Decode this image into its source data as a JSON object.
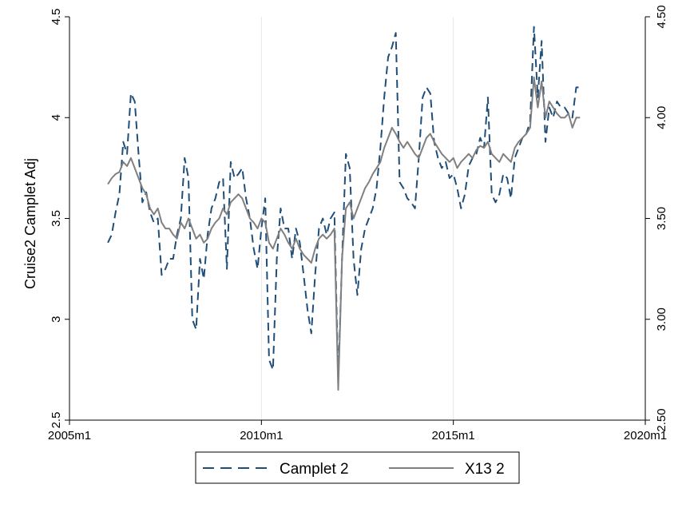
{
  "chart_data": {
    "type": "line",
    "ylabel": "Cruise2 Camplet Adj",
    "xlim": [
      2005.0,
      2020.0
    ],
    "ylim": [
      2.5,
      4.5
    ],
    "y2lim": [
      2.5,
      4.5
    ],
    "x_ticks": [
      {
        "value": 2005.0,
        "label": "2005m1"
      },
      {
        "value": 2010.0,
        "label": "2010m1"
      },
      {
        "value": 2015.0,
        "label": "2015m1"
      },
      {
        "value": 2020.0,
        "label": "2020m1"
      }
    ],
    "y_ticks": [
      {
        "value": 2.5,
        "label": "2.5"
      },
      {
        "value": 3.0,
        "label": "3"
      },
      {
        "value": 3.5,
        "label": "3.5"
      },
      {
        "value": 4.0,
        "label": "4"
      },
      {
        "value": 4.5,
        "label": "4.5"
      }
    ],
    "y2_ticks": [
      {
        "value": 2.5,
        "label": "2.50"
      },
      {
        "value": 3.0,
        "label": "3.00"
      },
      {
        "value": 3.5,
        "label": "3.50"
      },
      {
        "value": 4.0,
        "label": "4.00"
      },
      {
        "value": 4.5,
        "label": "4.50"
      }
    ],
    "grid": "vertical",
    "legend_position": "bottom",
    "series": [
      {
        "name": "Camplet 2",
        "style": "dashed",
        "color": "#1f4e79",
        "x": [
          2006.0,
          2006.1,
          2006.2,
          2006.3,
          2006.4,
          2006.5,
          2006.6,
          2006.7,
          2006.8,
          2006.9,
          2007.0,
          2007.1,
          2007.2,
          2007.3,
          2007.4,
          2007.5,
          2007.6,
          2007.7,
          2007.8,
          2007.9,
          2008.0,
          2008.1,
          2008.2,
          2008.3,
          2008.4,
          2008.5,
          2008.6,
          2008.7,
          2008.8,
          2008.9,
          2009.0,
          2009.1,
          2009.2,
          2009.3,
          2009.4,
          2009.5,
          2009.6,
          2009.7,
          2009.8,
          2009.9,
          2010.0,
          2010.1,
          2010.2,
          2010.3,
          2010.4,
          2010.5,
          2010.6,
          2010.7,
          2010.8,
          2010.9,
          2011.0,
          2011.1,
          2011.2,
          2011.3,
          2011.4,
          2011.5,
          2011.6,
          2011.7,
          2011.8,
          2011.9,
          2012.0,
          2012.1,
          2012.2,
          2012.3,
          2012.4,
          2012.5,
          2012.6,
          2012.7,
          2012.8,
          2012.9,
          2013.0,
          2013.1,
          2013.2,
          2013.3,
          2013.4,
          2013.5,
          2013.6,
          2013.7,
          2013.8,
          2013.9,
          2014.0,
          2014.1,
          2014.2,
          2014.3,
          2014.4,
          2014.5,
          2014.6,
          2014.7,
          2014.8,
          2014.9,
          2015.0,
          2015.1,
          2015.2,
          2015.3,
          2015.4,
          2015.5,
          2015.6,
          2015.7,
          2015.8,
          2015.9,
          2016.0,
          2016.1,
          2016.2,
          2016.3,
          2016.4,
          2016.5,
          2016.6,
          2016.7,
          2016.8,
          2016.9,
          2017.0,
          2017.1,
          2017.2,
          2017.3,
          2017.4,
          2017.5,
          2017.6,
          2017.7,
          2017.8,
          2017.9,
          2018.0,
          2018.1,
          2018.2,
          2018.3
        ],
        "y": [
          3.38,
          3.42,
          3.53,
          3.62,
          3.88,
          3.82,
          4.12,
          4.08,
          3.82,
          3.58,
          3.63,
          3.53,
          3.48,
          3.5,
          3.22,
          3.25,
          3.3,
          3.3,
          3.42,
          3.5,
          3.8,
          3.7,
          3.0,
          2.95,
          3.3,
          3.2,
          3.42,
          3.55,
          3.6,
          3.68,
          3.7,
          3.25,
          3.78,
          3.7,
          3.72,
          3.75,
          3.6,
          3.5,
          3.35,
          3.25,
          3.45,
          3.6,
          2.8,
          2.75,
          3.3,
          3.55,
          3.45,
          3.45,
          3.3,
          3.45,
          3.38,
          3.22,
          3.05,
          2.93,
          3.22,
          3.45,
          3.5,
          3.42,
          3.5,
          3.53,
          2.7,
          3.3,
          3.82,
          3.75,
          3.3,
          3.12,
          3.35,
          3.45,
          3.5,
          3.55,
          3.65,
          3.85,
          4.1,
          4.3,
          4.35,
          4.42,
          3.68,
          3.65,
          3.6,
          3.58,
          3.55,
          3.8,
          4.1,
          4.15,
          4.12,
          3.88,
          3.8,
          3.75,
          3.78,
          3.7,
          3.72,
          3.65,
          3.55,
          3.62,
          3.76,
          3.8,
          3.82,
          3.9,
          3.85,
          4.1,
          3.62,
          3.58,
          3.62,
          3.72,
          3.7,
          3.6,
          3.8,
          3.85,
          3.9,
          3.92,
          3.98,
          4.45,
          4.1,
          4.38,
          3.88,
          4.05,
          4.0,
          4.08,
          4.05,
          4.05,
          4.02,
          4.0,
          4.15,
          4.15
        ]
      },
      {
        "name": "X13 2",
        "style": "solid",
        "color": "#808080",
        "x": [
          2006.0,
          2006.1,
          2006.2,
          2006.3,
          2006.4,
          2006.5,
          2006.6,
          2006.7,
          2006.8,
          2006.9,
          2007.0,
          2007.1,
          2007.2,
          2007.3,
          2007.4,
          2007.5,
          2007.6,
          2007.7,
          2007.8,
          2007.9,
          2008.0,
          2008.1,
          2008.2,
          2008.3,
          2008.4,
          2008.5,
          2008.6,
          2008.7,
          2008.8,
          2008.9,
          2009.0,
          2009.1,
          2009.2,
          2009.3,
          2009.4,
          2009.5,
          2009.6,
          2009.7,
          2009.8,
          2009.9,
          2010.0,
          2010.1,
          2010.2,
          2010.3,
          2010.4,
          2010.5,
          2010.6,
          2010.7,
          2010.8,
          2010.9,
          2011.0,
          2011.1,
          2011.2,
          2011.3,
          2011.4,
          2011.5,
          2011.6,
          2011.7,
          2011.8,
          2011.9,
          2012.0,
          2012.1,
          2012.2,
          2012.3,
          2012.4,
          2012.5,
          2012.6,
          2012.7,
          2012.8,
          2012.9,
          2013.0,
          2013.1,
          2013.2,
          2013.3,
          2013.4,
          2013.5,
          2013.6,
          2013.7,
          2013.8,
          2013.9,
          2014.0,
          2014.1,
          2014.2,
          2014.3,
          2014.4,
          2014.5,
          2014.6,
          2014.7,
          2014.8,
          2014.9,
          2015.0,
          2015.1,
          2015.2,
          2015.3,
          2015.4,
          2015.5,
          2015.6,
          2015.7,
          2015.8,
          2015.9,
          2016.0,
          2016.1,
          2016.2,
          2016.3,
          2016.4,
          2016.5,
          2016.6,
          2016.7,
          2016.8,
          2016.9,
          2017.0,
          2017.1,
          2017.2,
          2017.3,
          2017.4,
          2017.5,
          2017.6,
          2017.7,
          2017.8,
          2017.9,
          2018.0,
          2018.1,
          2018.2,
          2018.3
        ],
        "y": [
          3.67,
          3.7,
          3.72,
          3.73,
          3.78,
          3.76,
          3.8,
          3.75,
          3.7,
          3.65,
          3.62,
          3.55,
          3.52,
          3.55,
          3.48,
          3.45,
          3.45,
          3.42,
          3.4,
          3.48,
          3.45,
          3.5,
          3.45,
          3.4,
          3.42,
          3.38,
          3.4,
          3.45,
          3.48,
          3.5,
          3.55,
          3.52,
          3.58,
          3.6,
          3.62,
          3.6,
          3.55,
          3.5,
          3.48,
          3.45,
          3.5,
          3.48,
          3.38,
          3.35,
          3.4,
          3.45,
          3.42,
          3.38,
          3.35,
          3.4,
          3.35,
          3.32,
          3.3,
          3.28,
          3.35,
          3.4,
          3.42,
          3.4,
          3.42,
          3.45,
          2.65,
          3.3,
          3.55,
          3.58,
          3.5,
          3.55,
          3.6,
          3.65,
          3.68,
          3.72,
          3.75,
          3.78,
          3.85,
          3.9,
          3.95,
          3.92,
          3.88,
          3.85,
          3.88,
          3.85,
          3.82,
          3.8,
          3.85,
          3.9,
          3.92,
          3.88,
          3.85,
          3.82,
          3.8,
          3.78,
          3.8,
          3.75,
          3.78,
          3.8,
          3.82,
          3.8,
          3.84,
          3.86,
          3.85,
          3.88,
          3.82,
          3.8,
          3.78,
          3.82,
          3.8,
          3.78,
          3.85,
          3.88,
          3.9,
          3.92,
          3.95,
          4.2,
          4.05,
          4.18,
          4.0,
          4.08,
          4.05,
          4.02,
          4.0,
          4.0,
          4.02,
          3.95,
          4.0,
          4.0
        ]
      }
    ]
  }
}
